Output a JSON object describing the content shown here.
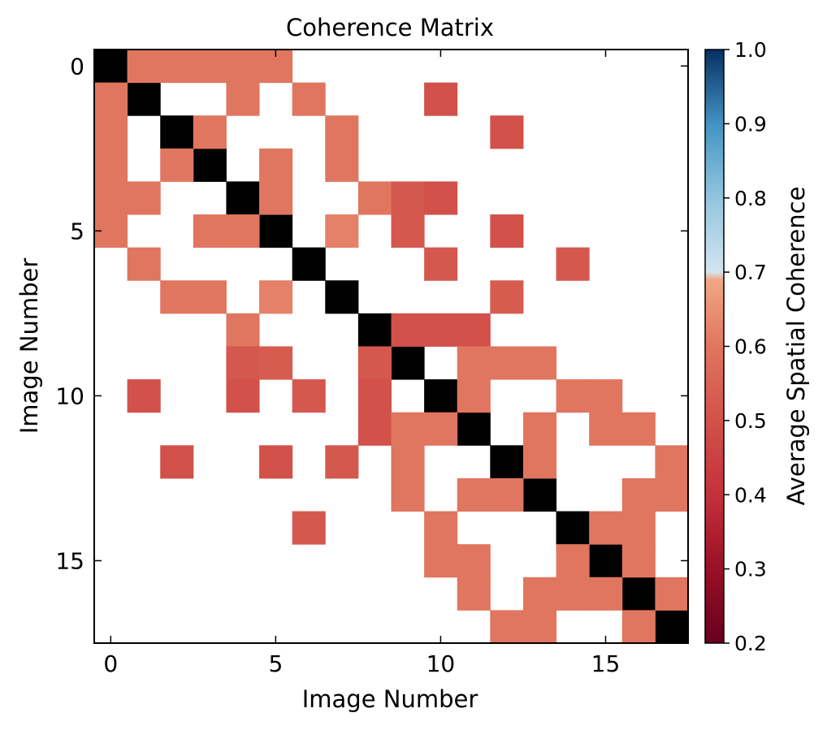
{
  "chart_data": {
    "type": "heatmap",
    "title": "Coherence Matrix",
    "xlabel": "Image Number",
    "ylabel": "Image Number",
    "x_ticks": [
      0,
      5,
      10,
      15
    ],
    "y_ticks": [
      0,
      5,
      10,
      15
    ],
    "n": 18,
    "diagonal_color": "#000000",
    "colorbar": {
      "label": "Average Spatial Coherence",
      "vmin": 0.2,
      "vmax": 1.0,
      "ticks": [
        "0.2",
        "0.3",
        "0.4",
        "0.5",
        "0.6",
        "0.7",
        "0.8",
        "0.9",
        "1.0"
      ],
      "stops": [
        {
          "v": 0.2,
          "color": "#67001f"
        },
        {
          "v": 0.3,
          "color": "#9a1026"
        },
        {
          "v": 0.4,
          "color": "#c5303b"
        },
        {
          "v": 0.5,
          "color": "#d2514a"
        },
        {
          "v": 0.6,
          "color": "#e0765f"
        },
        {
          "v": 0.69,
          "color": "#f2a787"
        },
        {
          "v": 0.7,
          "color": "#d1e5f0"
        },
        {
          "v": 0.8,
          "color": "#92c5de"
        },
        {
          "v": 0.9,
          "color": "#4393c3"
        },
        {
          "v": 1.0,
          "color": "#053061"
        }
      ]
    },
    "cells": [
      [
        0,
        1,
        0.6
      ],
      [
        0,
        2,
        0.6
      ],
      [
        0,
        3,
        0.6
      ],
      [
        0,
        4,
        0.6
      ],
      [
        0,
        5,
        0.6
      ],
      [
        1,
        0,
        0.6
      ],
      [
        1,
        4,
        0.6
      ],
      [
        1,
        6,
        0.6
      ],
      [
        1,
        10,
        0.5
      ],
      [
        2,
        0,
        0.6
      ],
      [
        2,
        3,
        0.6
      ],
      [
        2,
        7,
        0.6
      ],
      [
        2,
        12,
        0.5
      ],
      [
        3,
        0,
        0.6
      ],
      [
        3,
        2,
        0.6
      ],
      [
        3,
        5,
        0.6
      ],
      [
        3,
        7,
        0.6
      ],
      [
        4,
        0,
        0.6
      ],
      [
        4,
        1,
        0.6
      ],
      [
        4,
        5,
        0.6
      ],
      [
        4,
        8,
        0.6
      ],
      [
        4,
        9,
        0.52
      ],
      [
        4,
        10,
        0.5
      ],
      [
        5,
        0,
        0.6
      ],
      [
        5,
        3,
        0.6
      ],
      [
        5,
        4,
        0.6
      ],
      [
        5,
        7,
        0.62
      ],
      [
        5,
        9,
        0.52
      ],
      [
        5,
        12,
        0.5
      ],
      [
        6,
        1,
        0.6
      ],
      [
        6,
        10,
        0.52
      ],
      [
        6,
        14,
        0.52
      ],
      [
        7,
        2,
        0.6
      ],
      [
        7,
        3,
        0.6
      ],
      [
        7,
        5,
        0.62
      ],
      [
        7,
        12,
        0.53
      ],
      [
        8,
        4,
        0.6
      ],
      [
        8,
        9,
        0.5
      ],
      [
        8,
        10,
        0.5
      ],
      [
        8,
        11,
        0.5
      ],
      [
        9,
        4,
        0.52
      ],
      [
        9,
        5,
        0.53
      ],
      [
        9,
        8,
        0.52
      ],
      [
        9,
        11,
        0.6
      ],
      [
        9,
        12,
        0.6
      ],
      [
        9,
        13,
        0.6
      ],
      [
        10,
        1,
        0.5
      ],
      [
        10,
        4,
        0.5
      ],
      [
        10,
        6,
        0.52
      ],
      [
        10,
        8,
        0.5
      ],
      [
        10,
        11,
        0.6
      ],
      [
        10,
        14,
        0.6
      ],
      [
        10,
        15,
        0.6
      ],
      [
        11,
        8,
        0.5
      ],
      [
        11,
        9,
        0.6
      ],
      [
        11,
        10,
        0.6
      ],
      [
        11,
        13,
        0.6
      ],
      [
        11,
        15,
        0.6
      ],
      [
        11,
        16,
        0.6
      ],
      [
        12,
        2,
        0.5
      ],
      [
        12,
        5,
        0.5
      ],
      [
        12,
        7,
        0.52
      ],
      [
        12,
        9,
        0.6
      ],
      [
        12,
        13,
        0.6
      ],
      [
        12,
        17,
        0.6
      ],
      [
        13,
        9,
        0.6
      ],
      [
        13,
        11,
        0.6
      ],
      [
        13,
        12,
        0.6
      ],
      [
        13,
        16,
        0.6
      ],
      [
        13,
        17,
        0.6
      ],
      [
        14,
        6,
        0.52
      ],
      [
        14,
        10,
        0.6
      ],
      [
        14,
        15,
        0.6
      ],
      [
        14,
        16,
        0.6
      ],
      [
        15,
        10,
        0.6
      ],
      [
        15,
        11,
        0.6
      ],
      [
        15,
        14,
        0.6
      ],
      [
        15,
        16,
        0.6
      ],
      [
        16,
        11,
        0.6
      ],
      [
        16,
        13,
        0.6
      ],
      [
        16,
        14,
        0.6
      ],
      [
        16,
        15,
        0.6
      ],
      [
        16,
        17,
        0.6
      ],
      [
        17,
        12,
        0.6
      ],
      [
        17,
        13,
        0.6
      ],
      [
        17,
        16,
        0.6
      ]
    ]
  }
}
